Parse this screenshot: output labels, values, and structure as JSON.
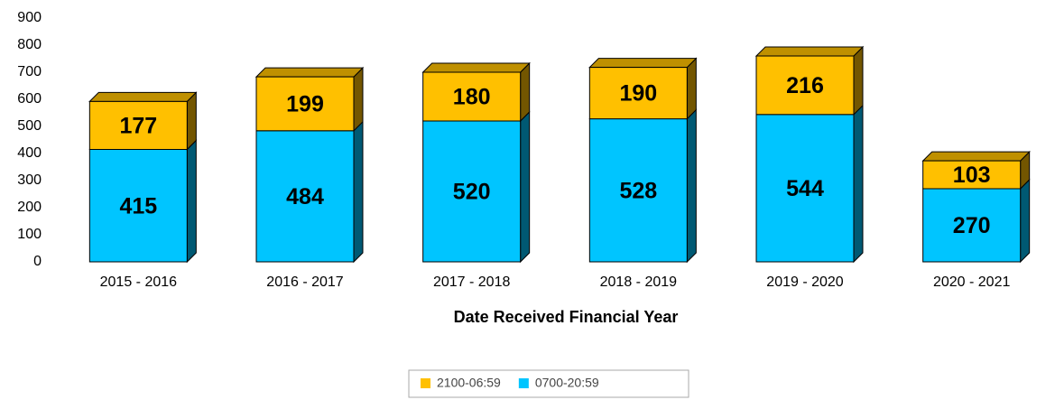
{
  "chart_data": {
    "type": "bar",
    "stacked": true,
    "x_label": "Date Received Financial Year",
    "categories": [
      "2015 - 2016",
      "2016 - 2017",
      "2017 - 2018",
      "2018 - 2019",
      "2019 - 2020",
      "2020 - 2021"
    ],
    "series": [
      {
        "name": "2100-06:59",
        "color": "#ffc000",
        "values": [
          177,
          199,
          180,
          190,
          216,
          103
        ]
      },
      {
        "name": "0700-20:59",
        "color": "#00c5ff",
        "values": [
          415,
          484,
          520,
          528,
          544,
          270
        ]
      }
    ],
    "ylim": [
      0,
      900
    ],
    "yticks": [
      0,
      100,
      200,
      300,
      400,
      500,
      600,
      700,
      800,
      900
    ],
    "grid": false,
    "legend": "bottom"
  }
}
